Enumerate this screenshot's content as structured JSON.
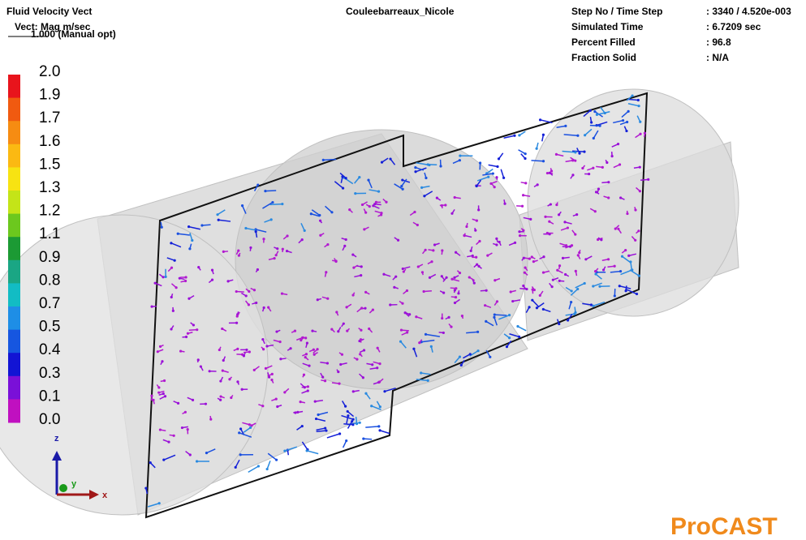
{
  "header": {
    "result": "Fluid Velocity Vect",
    "vector": "Vect: Mag m/sec",
    "scale": "1.000 (Manual opt)",
    "project": "Couleebarreaux_Nicole"
  },
  "info": [
    {
      "label": "Step No / Time Step",
      "value": ": 3340 / 4.520e-003"
    },
    {
      "label": "Simulated Time",
      "value": ": 6.7209 sec"
    },
    {
      "label": "Percent Filled",
      "value": ": 96.8"
    },
    {
      "label": "Fraction Solid",
      "value": ": N/A"
    }
  ],
  "legend": {
    "labels": [
      "2.0",
      "1.9",
      "1.7",
      "1.6",
      "1.5",
      "1.3",
      "1.2",
      "1.1",
      "0.9",
      "0.8",
      "0.7",
      "0.5",
      "0.4",
      "0.3",
      "0.1",
      "0.0"
    ],
    "colors": [
      "#e8141c",
      "#f05a10",
      "#f68c12",
      "#fbb912",
      "#f7e312",
      "#c4e418",
      "#6cc81e",
      "#1c9a34",
      "#1aa684",
      "#12bcc4",
      "#1e8ee6",
      "#1656e0",
      "#1214d4",
      "#7a10d8",
      "#c010c0"
    ]
  },
  "axes": {
    "z": "z",
    "y": "y",
    "x": "x"
  },
  "brand": "ProCAST"
}
